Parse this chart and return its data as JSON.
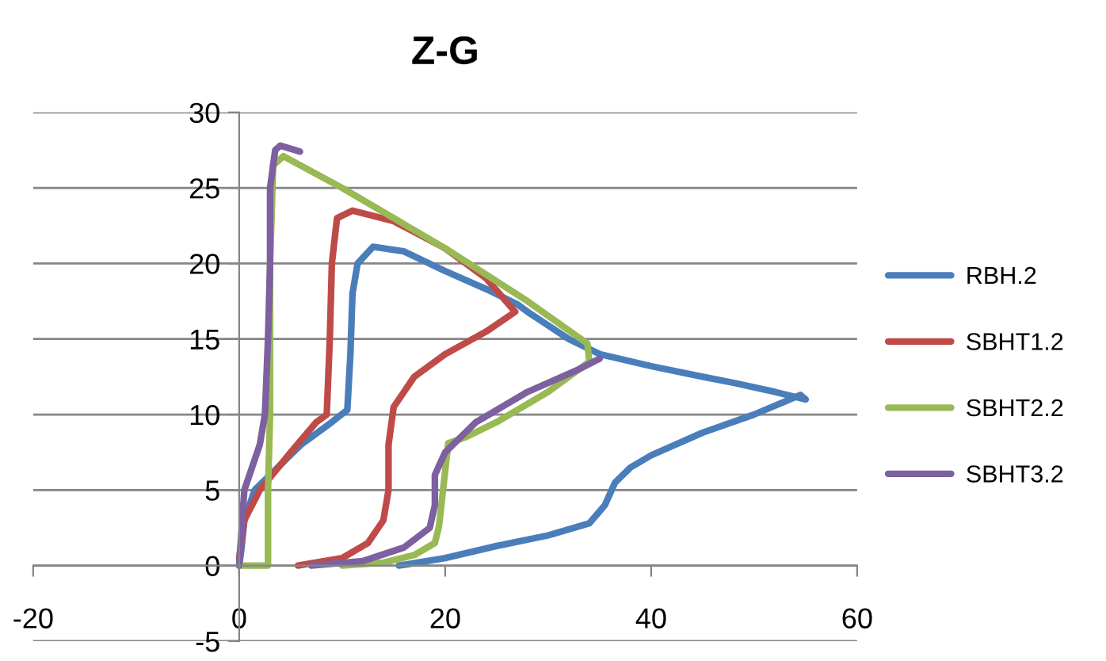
{
  "chart_data": {
    "type": "line",
    "title": "Z-G",
    "xlim": [
      -20,
      60
    ],
    "xticks": [
      -20,
      0,
      20,
      40,
      60
    ],
    "ylim": [
      -5,
      30
    ],
    "yticks": [
      -5,
      0,
      5,
      10,
      15,
      20,
      25,
      30
    ],
    "grid": "y",
    "legend": "right",
    "marker": "none",
    "line_style": "solid",
    "series": [
      {
        "name": "RBH.2",
        "color": "#4a7ebb",
        "x": [
          15.5,
          20,
          25,
          30,
          34,
          35.5,
          36.5,
          38,
          40,
          45,
          50,
          54.5,
          55,
          52,
          48,
          45,
          40,
          35,
          32,
          28,
          27,
          24,
          20,
          16,
          13,
          11.5,
          11,
          10.8,
          10.5,
          9,
          6,
          3,
          1.5,
          0.5,
          0.2,
          0
        ],
        "values": [
          0,
          0.5,
          1.3,
          2,
          2.8,
          4,
          5.5,
          6.5,
          7.3,
          8.8,
          10,
          11.3,
          11,
          11.5,
          12.1,
          12.5,
          13.2,
          14,
          15,
          16.8,
          17.3,
          18.3,
          19.5,
          20.8,
          21.1,
          20,
          18,
          14,
          10.3,
          9.5,
          8,
          6,
          5,
          3,
          1,
          0
        ]
      },
      {
        "name": "SBHT1.2",
        "color": "#be4b48",
        "x": [
          5.7,
          10,
          12.5,
          14,
          14.5,
          14.5,
          15,
          17,
          20,
          24,
          26.8,
          24,
          20,
          15,
          11,
          9.5,
          9,
          8.8,
          8.5,
          7.5,
          5,
          2,
          0.5,
          0
        ],
        "values": [
          0,
          0.5,
          1.5,
          3,
          5,
          8,
          10.5,
          12.5,
          14,
          15.5,
          16.8,
          19,
          21,
          22.8,
          23.5,
          23,
          20,
          15,
          10,
          9.5,
          7.5,
          5,
          3,
          0.5
        ]
      },
      {
        "name": "SBHT2.2",
        "color": "#98b954",
        "x": [
          0,
          2.8,
          2.8,
          3,
          3,
          3.3,
          4.3,
          10,
          20,
          28,
          33.8,
          34,
          30,
          25,
          22,
          20.3,
          19.4,
          19,
          17,
          14,
          10
        ],
        "values": [
          0,
          0,
          5,
          10,
          20,
          26.5,
          27.1,
          25,
          21,
          17.5,
          14.7,
          13.5,
          11.5,
          9.5,
          8.5,
          8.1,
          2.6,
          1.5,
          0.7,
          0.2,
          0
        ]
      },
      {
        "name": "SBHT3.2",
        "color": "#7d60a0",
        "x": [
          7,
          12,
          16,
          18.5,
          19,
          19,
          20,
          23,
          28,
          33,
          35,
          null,
          0,
          0.5,
          2,
          2.5,
          2.8,
          3,
          3,
          3.5,
          4,
          5.9
        ],
        "values": [
          0,
          0.3,
          1.2,
          2.5,
          4,
          6,
          7.5,
          9.5,
          11.5,
          13,
          13.7,
          null,
          0,
          5,
          8,
          10,
          15,
          20,
          25,
          27.5,
          27.8,
          27.4
        ]
      }
    ]
  }
}
